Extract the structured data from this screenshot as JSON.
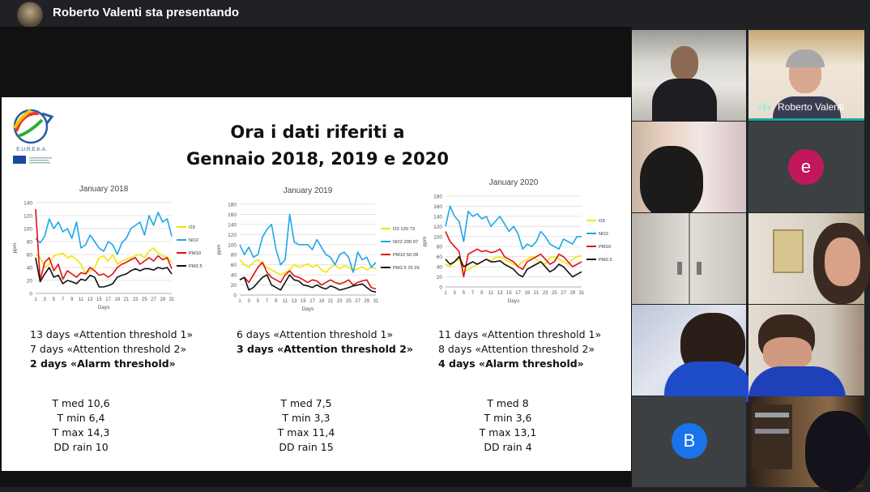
{
  "header": {
    "presenting_text": "Roberto Valenti sta presentando"
  },
  "slide": {
    "logo_text": "E.U.R.E.K.A.",
    "title_line1": "Ora i dati riferiti a",
    "title_line2": "Gennaio 2018, 2019 e 2020",
    "columns": [
      {
        "lines": [
          "13 days «Attention threshold 1»",
          "7 days «Attention threshold 2»",
          "2 days «Alarm threshold»"
        ],
        "bold_index": 2,
        "weather": [
          "T med 10,6",
          "T min 6,4",
          "T max 14,3",
          "DD rain 10"
        ]
      },
      {
        "lines": [
          "6 days «Attention threshold 1»",
          "3 days «Attention threshold 2»"
        ],
        "bold_index": 1,
        "weather": [
          "T med 7,5",
          "T min 3,3",
          "T max 11,4",
          "DD rain 15"
        ]
      },
      {
        "lines": [
          "11 days «Attention threshold 1»",
          "8 days «Attention threshold 2»",
          "4 days «Alarm threshold»"
        ],
        "bold_index": 2,
        "weather": [
          "T med 8",
          "T min 3,6",
          "T max 13,1",
          "DD rain 4"
        ]
      }
    ]
  },
  "colors": {
    "O3": "#f5e400",
    "NO2": "#1ea7e6",
    "PM10": "#e01010",
    "PM25": "#111111",
    "active_speaker": "#1aa9a0",
    "avatar_e": "#c2185b",
    "avatar_b": "#1a73e8"
  },
  "chart_data": [
    {
      "type": "line",
      "title": "January 2018",
      "xlabel": "Days",
      "ylabel": "ppm",
      "ylim": [
        0,
        140
      ],
      "yticks": [
        0,
        20,
        40,
        60,
        80,
        100,
        120,
        140
      ],
      "xticks": [
        "1",
        "3",
        "5",
        "7",
        "9",
        "11",
        "13",
        "15",
        "17",
        "19",
        "21",
        "23",
        "25",
        "27",
        "29",
        "31"
      ],
      "x": [
        1,
        2,
        3,
        4,
        5,
        6,
        7,
        8,
        9,
        10,
        11,
        12,
        13,
        14,
        15,
        16,
        17,
        18,
        19,
        20,
        21,
        22,
        23,
        24,
        25,
        26,
        27,
        28,
        29,
        30,
        31
      ],
      "series": [
        {
          "name": "O3",
          "values": [
            60,
            55,
            40,
            45,
            58,
            60,
            62,
            55,
            58,
            52,
            45,
            30,
            35,
            40,
            55,
            58,
            50,
            60,
            45,
            50,
            52,
            55,
            58,
            60,
            55,
            65,
            70,
            62,
            58,
            56,
            48
          ]
        },
        {
          "name": "NO2",
          "values": [
            85,
            78,
            88,
            115,
            100,
            110,
            95,
            100,
            85,
            110,
            70,
            75,
            90,
            80,
            70,
            65,
            80,
            75,
            60,
            78,
            85,
            100,
            105,
            110,
            90,
            120,
            105,
            125,
            110,
            115,
            88
          ]
        },
        {
          "name": "PM10",
          "values": [
            130,
            20,
            48,
            55,
            35,
            45,
            22,
            35,
            30,
            25,
            32,
            30,
            40,
            35,
            28,
            30,
            25,
            30,
            40,
            45,
            48,
            52,
            55,
            45,
            50,
            55,
            50,
            58,
            52,
            55,
            38
          ]
        },
        {
          "name": "PM2.5",
          "values": [
            55,
            18,
            30,
            40,
            25,
            28,
            15,
            20,
            18,
            15,
            22,
            20,
            28,
            25,
            10,
            10,
            12,
            15,
            25,
            28,
            30,
            35,
            38,
            35,
            38,
            38,
            36,
            40,
            38,
            40,
            30
          ]
        }
      ]
    },
    {
      "type": "line",
      "title": "January 2019",
      "xlabel": "Days",
      "ylabel": "ppm",
      "ylim": [
        0,
        180
      ],
      "yticks": [
        0,
        20,
        40,
        60,
        80,
        100,
        120,
        140,
        160,
        180
      ],
      "xticks": [
        "1",
        "3",
        "5",
        "7",
        "9",
        "11",
        "13",
        "15",
        "17",
        "19",
        "21",
        "23",
        "25",
        "27",
        "29",
        "31"
      ],
      "x": [
        1,
        2,
        3,
        4,
        5,
        6,
        7,
        8,
        9,
        10,
        11,
        12,
        13,
        14,
        15,
        16,
        17,
        18,
        19,
        20,
        21,
        22,
        23,
        24,
        25,
        26,
        27,
        28,
        29,
        30,
        31
      ],
      "series": [
        {
          "name": "O3 120 73",
          "values": [
            70,
            60,
            55,
            65,
            70,
            60,
            55,
            50,
            45,
            40,
            45,
            50,
            60,
            55,
            58,
            62,
            55,
            60,
            50,
            45,
            55,
            60,
            52,
            58,
            55,
            48,
            52,
            56,
            50,
            55,
            52
          ]
        },
        {
          "name": "NO2 200 97",
          "values": [
            100,
            80,
            95,
            75,
            80,
            115,
            130,
            140,
            90,
            60,
            70,
            160,
            105,
            100,
            100,
            100,
            90,
            110,
            95,
            80,
            75,
            60,
            80,
            85,
            75,
            45,
            85,
            70,
            75,
            55,
            65
          ]
        },
        {
          "name": "PM10 50 28",
          "values": [
            30,
            35,
            25,
            40,
            55,
            65,
            45,
            35,
            30,
            25,
            40,
            48,
            38,
            35,
            30,
            25,
            30,
            28,
            20,
            25,
            30,
            25,
            22,
            25,
            30,
            20,
            25,
            28,
            30,
            15,
            12
          ]
        },
        {
          "name": "PM2.5 25 26",
          "values": [
            30,
            35,
            10,
            15,
            25,
            35,
            40,
            20,
            15,
            10,
            25,
            40,
            30,
            28,
            20,
            18,
            15,
            20,
            15,
            12,
            18,
            15,
            10,
            12,
            15,
            18,
            20,
            22,
            15,
            8,
            6
          ]
        }
      ]
    },
    {
      "type": "line",
      "title": "January 2020",
      "xlabel": "Days",
      "ylabel": "ppm",
      "ylim": [
        0,
        180
      ],
      "yticks": [
        0,
        20,
        40,
        60,
        80,
        100,
        120,
        140,
        160,
        180
      ],
      "xticks": [
        "1",
        "3",
        "5",
        "7",
        "9",
        "11",
        "13",
        "15",
        "17",
        "19",
        "21",
        "23",
        "25",
        "27",
        "29",
        "31"
      ],
      "x": [
        1,
        2,
        3,
        4,
        5,
        6,
        7,
        8,
        9,
        10,
        11,
        12,
        13,
        14,
        15,
        16,
        17,
        18,
        19,
        20,
        21,
        22,
        23,
        24,
        25,
        26,
        27,
        28,
        29,
        30,
        31
      ],
      "series": [
        {
          "name": "O3",
          "values": [
            45,
            40,
            50,
            55,
            30,
            35,
            40,
            45,
            50,
            55,
            52,
            58,
            60,
            55,
            50,
            45,
            42,
            50,
            55,
            60,
            55,
            50,
            45,
            58,
            60,
            55,
            50,
            45,
            55,
            60,
            62
          ]
        },
        {
          "name": "NO2",
          "values": [
            120,
            160,
            140,
            130,
            90,
            150,
            140,
            145,
            135,
            140,
            120,
            130,
            140,
            125,
            110,
            120,
            105,
            75,
            85,
            80,
            90,
            110,
            100,
            85,
            80,
            75,
            95,
            90,
            85,
            100,
            100
          ]
        },
        {
          "name": "PM10",
          "values": [
            110,
            90,
            80,
            70,
            20,
            65,
            70,
            75,
            70,
            72,
            68,
            70,
            75,
            60,
            55,
            50,
            40,
            35,
            50,
            55,
            60,
            65,
            55,
            45,
            50,
            65,
            60,
            50,
            40,
            45,
            50
          ]
        },
        {
          "name": "PM2.5",
          "values": [
            55,
            45,
            50,
            60,
            40,
            45,
            50,
            45,
            50,
            55,
            50,
            50,
            52,
            45,
            40,
            35,
            25,
            20,
            35,
            40,
            45,
            50,
            40,
            30,
            35,
            45,
            40,
            30,
            20,
            25,
            30
          ]
        }
      ]
    }
  ],
  "participants": [
    {
      "name": "Roberto Valenti"
    },
    {
      "initial": "e"
    },
    {
      "initial": "B"
    }
  ]
}
